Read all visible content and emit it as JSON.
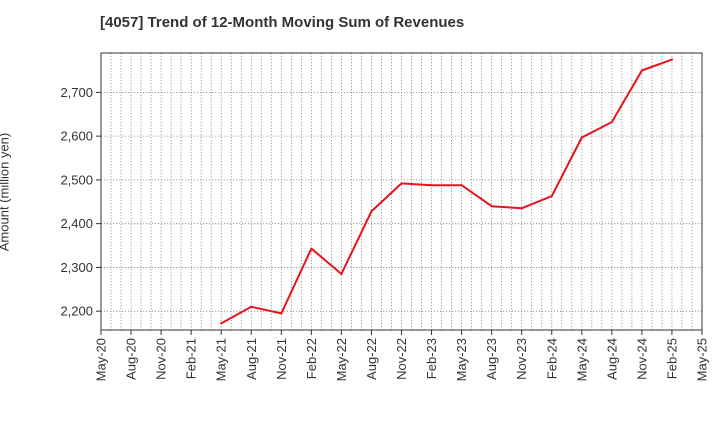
{
  "chart_data": {
    "type": "line",
    "title": "[4057]  Trend of 12-Month Moving Sum of Revenues",
    "xlabel": "",
    "ylabel": "Amount (million yen)",
    "x_ticks": [
      "May-20",
      "Aug-20",
      "Nov-20",
      "Feb-21",
      "May-21",
      "Aug-21",
      "Nov-21",
      "Feb-22",
      "May-22",
      "Aug-22",
      "Nov-22",
      "Feb-23",
      "May-23",
      "Aug-23",
      "Nov-23",
      "Feb-24",
      "May-24",
      "Aug-24",
      "Nov-24",
      "Feb-25",
      "May-25"
    ],
    "y_ticks": [
      2200,
      2300,
      2400,
      2500,
      2600,
      2700
    ],
    "y_tick_labels": [
      "2,200",
      "2,300",
      "2,400",
      "2,500",
      "2,600",
      "2,700"
    ],
    "ylim": [
      2157,
      2790
    ],
    "grid": true,
    "series": [
      {
        "color": "#e8141c",
        "x": [
          "May-21",
          "Aug-21",
          "Nov-21",
          "Feb-22",
          "May-22",
          "Aug-22",
          "Nov-22",
          "Feb-23",
          "May-23",
          "Aug-23",
          "Nov-23",
          "Feb-24",
          "May-24",
          "Aug-24",
          "Nov-24",
          "Feb-25"
        ],
        "values": [
          2172,
          2210,
          2195,
          2343,
          2285,
          2428,
          2492,
          2488,
          2488,
          2440,
          2435,
          2463,
          2597,
          2632,
          2750,
          2775
        ]
      }
    ]
  }
}
